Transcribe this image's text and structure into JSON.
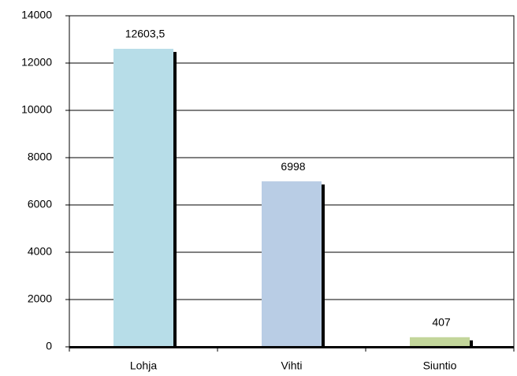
{
  "chart_data": {
    "type": "bar",
    "categories": [
      "Lohja",
      "Vihti",
      "Siuntio"
    ],
    "values": [
      12603.5,
      6998,
      407
    ],
    "value_labels": [
      "12603,5",
      "6998",
      "407"
    ],
    "colors": [
      "#b7dde8",
      "#b9cde5",
      "#c3d69b"
    ],
    "ylim": [
      0,
      14000
    ],
    "yticks": [
      0,
      2000,
      4000,
      6000,
      8000,
      10000,
      12000,
      14000
    ],
    "grid": true
  }
}
